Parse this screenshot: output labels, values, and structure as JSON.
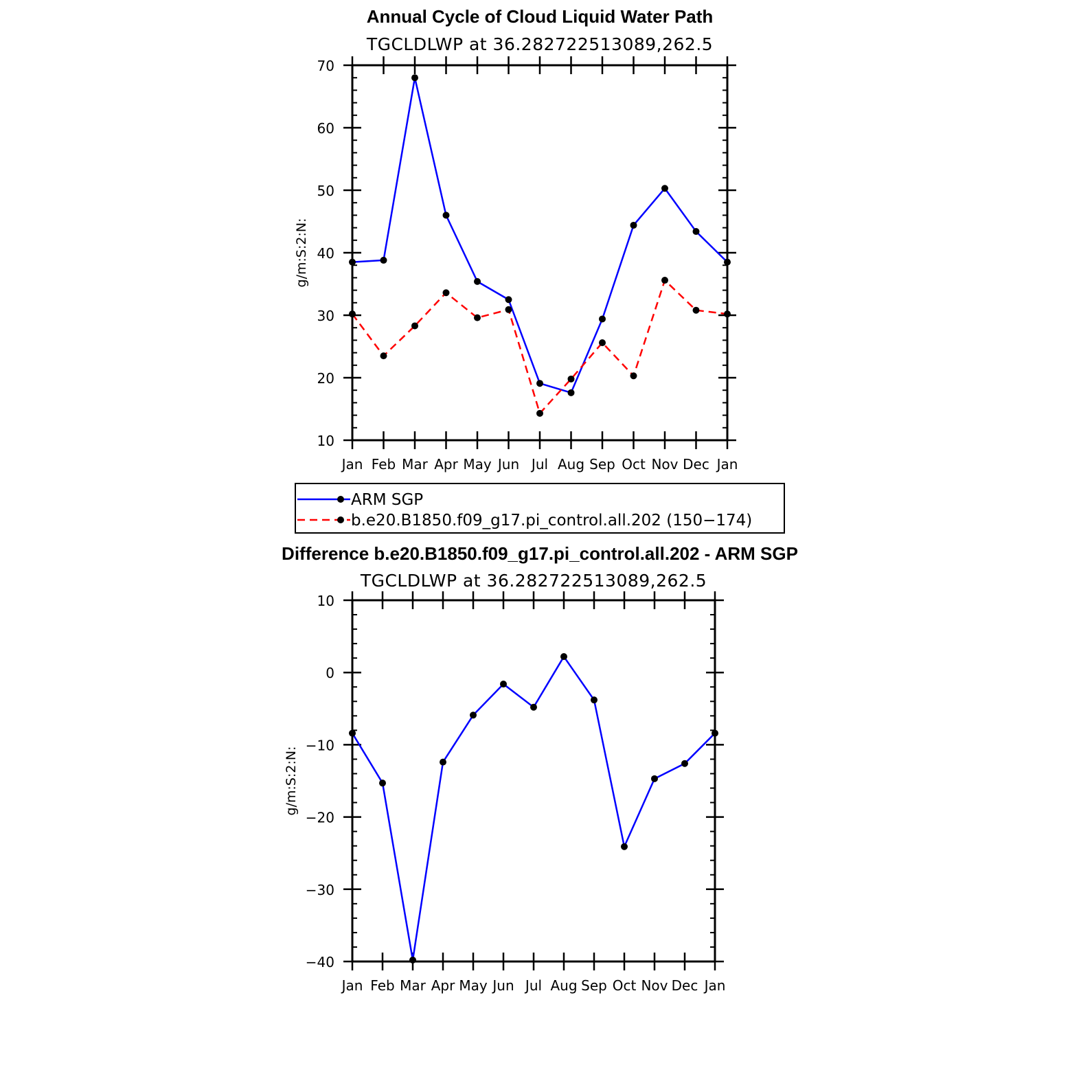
{
  "chart_data": [
    {
      "type": "line",
      "title": "Annual Cycle of Cloud Liquid Water Path",
      "subtitle": "TGCLDLWP  at  36.282722513089,262.5",
      "xlabel": "",
      "ylabel": "g/m:S:2:N:",
      "categories": [
        "Jan",
        "Feb",
        "Mar",
        "Apr",
        "May",
        "Jun",
        "Jul",
        "Aug",
        "Sep",
        "Oct",
        "Nov",
        "Dec",
        "Jan"
      ],
      "ylim": [
        10,
        70
      ],
      "yticks": [
        10,
        20,
        30,
        40,
        50,
        60,
        70
      ],
      "series": [
        {
          "name": "ARM SGP",
          "color": "#0000ff",
          "dash": "solid",
          "values": [
            38.5,
            38.8,
            68.0,
            46.0,
            35.4,
            32.5,
            19.1,
            17.6,
            29.4,
            44.4,
            50.3,
            43.4,
            38.5
          ]
        },
        {
          "name": "b.e20.B1850.f09_g17.pi_control.all.202 (150−174)",
          "color": "#ff0000",
          "dash": "dashed",
          "values": [
            30.2,
            23.5,
            28.3,
            33.6,
            29.6,
            30.9,
            14.3,
            19.8,
            25.6,
            20.3,
            35.6,
            30.8,
            30.2
          ]
        }
      ],
      "legend": "below",
      "grid": false
    },
    {
      "type": "line",
      "title": "Difference b.e20.B1850.f09_g17.pi_control.all.202 - ARM SGP",
      "subtitle": "TGCLDLWP  at  36.282722513089,262.5",
      "xlabel": "",
      "ylabel": "g/m:S:2:N:",
      "categories": [
        "Jan",
        "Feb",
        "Mar",
        "Apr",
        "May",
        "Jun",
        "Jul",
        "Aug",
        "Sep",
        "Oct",
        "Nov",
        "Dec",
        "Jan"
      ],
      "ylim": [
        -40,
        10
      ],
      "yticks": [
        -40,
        -30,
        -20,
        -10,
        0,
        10
      ],
      "ytick_labels": [
        "−40",
        "−30",
        "−20",
        "−10",
        "0",
        "10"
      ],
      "series": [
        {
          "color": "#0000ff",
          "dash": "solid",
          "values": [
            -8.4,
            -15.3,
            -39.8,
            -12.4,
            -5.9,
            -1.6,
            -4.8,
            2.2,
            -3.8,
            -24.1,
            -14.7,
            -12.6,
            -8.4
          ]
        }
      ],
      "grid": false
    }
  ]
}
